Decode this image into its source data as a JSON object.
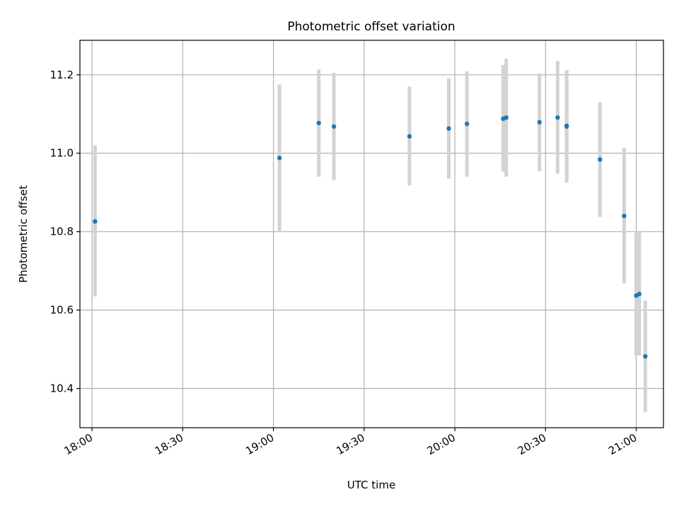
{
  "chart_data": {
    "type": "scatter",
    "title": "Photometric offset variation",
    "xlabel": "UTC time",
    "ylabel": "Photometric offset",
    "x_axis": {
      "kind": "time",
      "xlim": [
        "17:56",
        "21:09"
      ],
      "ticks": [
        "18:00",
        "18:30",
        "19:00",
        "19:30",
        "20:00",
        "20:30",
        "21:00"
      ]
    },
    "ylim": [
      10.3,
      11.288
    ],
    "y_ticks": [
      "10.4",
      "10.6",
      "10.8",
      "11.0",
      "11.2"
    ],
    "grid": true,
    "colors": {
      "point": "#1f77b4",
      "errorbar": "#d3d3d3",
      "grid": "#b0b0b0"
    },
    "series": [
      {
        "points": [
          {
            "x": "18:01",
            "y": 10.826,
            "ylow": 10.635,
            "yhigh": 11.02
          },
          {
            "x": "19:02",
            "y": 10.988,
            "ylow": 10.8,
            "yhigh": 11.175
          },
          {
            "x": "19:15",
            "y": 11.077,
            "ylow": 10.94,
            "yhigh": 11.213
          },
          {
            "x": "19:20",
            "y": 11.068,
            "ylow": 10.932,
            "yhigh": 11.205
          },
          {
            "x": "19:45",
            "y": 11.043,
            "ylow": 10.918,
            "yhigh": 11.17
          },
          {
            "x": "19:58",
            "y": 11.063,
            "ylow": 10.935,
            "yhigh": 11.191
          },
          {
            "x": "20:04",
            "y": 11.075,
            "ylow": 10.94,
            "yhigh": 11.209
          },
          {
            "x": "20:16",
            "y": 11.088,
            "ylow": 10.953,
            "yhigh": 11.225
          },
          {
            "x": "20:17",
            "y": 11.091,
            "ylow": 10.94,
            "yhigh": 11.241
          },
          {
            "x": "20:28",
            "y": 11.079,
            "ylow": 10.954,
            "yhigh": 11.204
          },
          {
            "x": "20:34",
            "y": 11.091,
            "ylow": 10.948,
            "yhigh": 11.235
          },
          {
            "x": "20:37",
            "y": 11.07,
            "ylow": 10.927,
            "yhigh": 11.212
          },
          {
            "x": "20:37",
            "y": 11.068,
            "ylow": 10.925,
            "yhigh": 11.211
          },
          {
            "x": "20:48",
            "y": 10.984,
            "ylow": 10.838,
            "yhigh": 11.13
          },
          {
            "x": "20:56",
            "y": 10.84,
            "ylow": 10.668,
            "yhigh": 11.014
          },
          {
            "x": "21:00",
            "y": 10.637,
            "ylow": 10.484,
            "yhigh": 10.8
          },
          {
            "x": "21:01",
            "y": 10.641,
            "ylow": 10.484,
            "yhigh": 10.8
          },
          {
            "x": "21:03",
            "y": 10.482,
            "ylow": 10.34,
            "yhigh": 10.624
          }
        ]
      }
    ]
  }
}
